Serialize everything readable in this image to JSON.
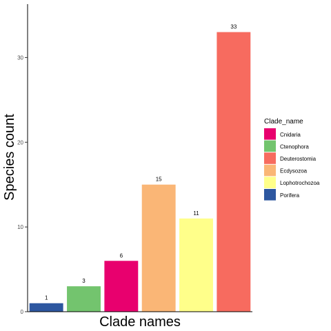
{
  "chart_data": {
    "type": "bar",
    "categories": [
      "Porifera",
      "Ctenophora",
      "Cnidaria",
      "Ecdysozoa",
      "Lophotrochozoa",
      "Deuterostomia"
    ],
    "values": [
      1,
      3,
      6,
      15,
      11,
      33
    ],
    "colors": [
      "#2D57A0",
      "#73C46E",
      "#E8006E",
      "#FAB676",
      "#FFFF8A",
      "#F76B5F"
    ],
    "data_labels": [
      "1",
      "3",
      "6",
      "15",
      "11",
      "33"
    ],
    "xlabel": "Clade names",
    "ylabel": "Species count",
    "ylim": [
      0,
      36.3
    ],
    "y_ticks": [
      0,
      10,
      20,
      30
    ],
    "y_tick_labels": [
      "0",
      "10",
      "20",
      "30"
    ],
    "x_tick_labels_shown": false,
    "grid": false,
    "legend": {
      "title": "Clade_name",
      "placement": "right",
      "entries": [
        {
          "label": "Cnidaria",
          "color": "#E8006E"
        },
        {
          "label": "Ctenophora",
          "color": "#73C46E"
        },
        {
          "label": "Deuterostomia",
          "color": "#F76B5F"
        },
        {
          "label": "Ecdysozoa",
          "color": "#FAB676"
        },
        {
          "label": "Lophotrochozoa",
          "color": "#FFFF8A"
        },
        {
          "label": "Porifera",
          "color": "#2D57A0"
        }
      ]
    }
  }
}
